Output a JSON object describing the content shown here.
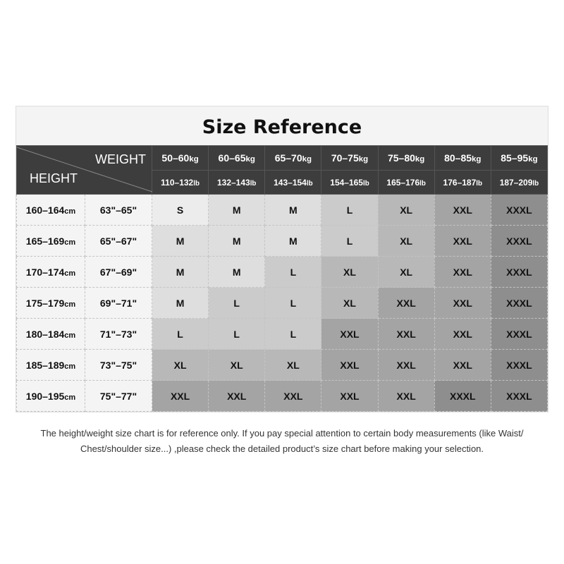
{
  "title": "Size Reference",
  "weight_label": "WEIGHT",
  "height_label": "HEIGHT",
  "weights": [
    {
      "kg": "50–60",
      "lb": "110–132"
    },
    {
      "kg": "60–65",
      "lb": "132–143"
    },
    {
      "kg": "65–70",
      "lb": "143–154"
    },
    {
      "kg": "70–75",
      "lb": "154–165"
    },
    {
      "kg": "75–80",
      "lb": "165–176"
    },
    {
      "kg": "80–85",
      "lb": "176–187"
    },
    {
      "kg": "85–95",
      "lb": "187–209"
    }
  ],
  "kg_unit": "kg",
  "lb_unit": "lb",
  "cm_unit": "cm",
  "rows": [
    {
      "cm": "160–164",
      "inch": "63\"–65\"",
      "sizes": [
        "S",
        "M",
        "M",
        "L",
        "XL",
        "XXL",
        "XXXL"
      ]
    },
    {
      "cm": "165–169",
      "inch": "65\"–67\"",
      "sizes": [
        "M",
        "M",
        "M",
        "L",
        "XL",
        "XXL",
        "XXXL"
      ]
    },
    {
      "cm": "170–174",
      "inch": "67\"–69\"",
      "sizes": [
        "M",
        "M",
        "L",
        "XL",
        "XL",
        "XXL",
        "XXXL"
      ]
    },
    {
      "cm": "175–179",
      "inch": "69\"–71\"",
      "sizes": [
        "M",
        "L",
        "L",
        "XL",
        "XXL",
        "XXL",
        "XXXL"
      ]
    },
    {
      "cm": "180–184",
      "inch": "71\"–73\"",
      "sizes": [
        "L",
        "L",
        "L",
        "XXL",
        "XXL",
        "XXL",
        "XXXL"
      ]
    },
    {
      "cm": "185–189",
      "inch": "73\"–75\"",
      "sizes": [
        "XL",
        "XL",
        "XL",
        "XXL",
        "XXL",
        "XXL",
        "XXXL"
      ]
    },
    {
      "cm": "190–195",
      "inch": "75\"–77\"",
      "sizes": [
        "XXL",
        "XXL",
        "XXL",
        "XXL",
        "XXL",
        "XXXL",
        "XXXL"
      ]
    }
  ],
  "size_colors": {
    "S": "#ececec",
    "M": "#dedede",
    "L": "#cbcbcb",
    "XL": "#b8b8b8",
    "XXL": "#a4a4a4",
    "XXXL": "#8e8e8e"
  },
  "note_line1": "The height/weight size chart is for reference only. If you pay special attention to certain body measurements  (like Waist/",
  "note_line2": "Chest/shoulder size...)  ,please check the detailed product’s size chart before making your selection."
}
